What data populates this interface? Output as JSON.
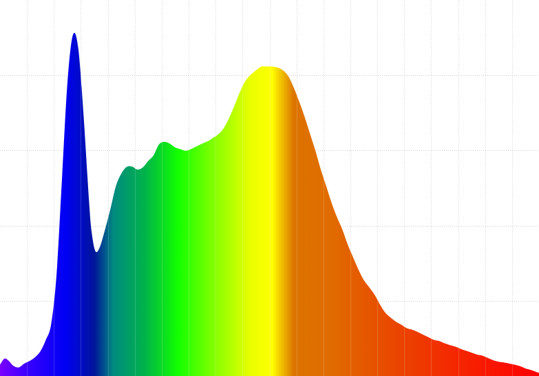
{
  "chart_data": {
    "type": "area",
    "title": "",
    "xlabel": "",
    "ylabel": "",
    "grid": true,
    "xlim": [
      0,
      100
    ],
    "ylim": [
      0,
      100
    ],
    "x_gridlines": [
      5,
      10,
      15,
      20,
      25,
      30,
      35,
      40,
      45,
      50,
      55,
      60,
      65,
      70,
      75,
      80,
      85,
      90,
      95
    ],
    "y_gridlines": [
      20,
      40,
      60,
      80
    ],
    "series": [
      {
        "x": [
          0,
          0.8,
          1.5,
          2.5,
          3.5,
          4.5,
          5.5,
          6.5,
          7.5,
          8.5,
          9.5,
          10.5,
          11.5,
          12.5,
          13.5,
          14.5,
          15.5,
          16.5,
          17.0,
          17.7,
          18.5,
          19.5,
          20.5,
          21.5,
          22.5,
          23.5,
          24.5,
          25.5,
          26.5,
          27.5,
          28.5,
          29.5,
          30.5,
          31.5,
          32.5,
          33.5,
          34.5,
          35.5,
          36.5,
          37.5,
          38.5,
          39.5,
          40.5,
          41.5,
          42.5,
          43.5,
          44.5,
          45.5,
          46.5,
          47.5,
          48.5,
          49.5,
          50.5,
          51.5,
          52.5,
          53.5,
          54.5,
          55.5,
          56.5,
          57.5,
          58.5,
          59.5,
          60.5,
          61.5,
          62.5,
          63.5,
          64.5,
          65.5,
          66.5,
          67.5,
          68.5,
          69.5,
          70.5,
          71.5,
          72.5,
          73.5,
          74.5,
          75.5,
          76.5,
          77.5,
          78.5,
          79.5,
          80.5,
          81.5,
          82.5,
          83.5,
          84.5,
          85.5,
          86.5,
          87.5,
          88.5,
          89.5,
          90.5,
          91.5,
          92.5,
          93.5,
          94.5,
          95.5,
          96.5,
          97.5,
          98.5,
          100
        ],
        "y": [
          3,
          4.6,
          4.2,
          2.7,
          2.3,
          3.3,
          4.0,
          5.0,
          6.6,
          9.6,
          13.9,
          27.2,
          52.5,
          77.8,
          90.6,
          87.4,
          69.4,
          46.9,
          38.3,
          33.2,
          34.2,
          39.0,
          44.5,
          50.5,
          53.8,
          55.6,
          55.7,
          54.9,
          55.5,
          57.2,
          58.7,
          61.6,
          62.3,
          61.8,
          60.8,
          60.3,
          59.9,
          60.4,
          61.1,
          61.8,
          62.4,
          63.3,
          64.3,
          65.9,
          68.6,
          71.9,
          75.5,
          78.4,
          80.1,
          81.3,
          82.3,
          82.3,
          82.3,
          82.0,
          81.3,
          79.7,
          76.7,
          73.0,
          69.0,
          64.5,
          60.0,
          55.0,
          50.6,
          46.1,
          42.3,
          39.0,
          35.0,
          31.6,
          28.3,
          25.5,
          23.6,
          21.6,
          19.0,
          16.8,
          15.5,
          14.4,
          13.6,
          12.7,
          12.3,
          11.7,
          11.0,
          10.3,
          9.6,
          9.3,
          8.7,
          8.2,
          7.8,
          7.2,
          6.7,
          6.2,
          5.7,
          5.4,
          4.8,
          4.2,
          3.8,
          3.6,
          3.3,
          3.0,
          2.6,
          2.0,
          1.6,
          0.8
        ]
      }
    ],
    "gradient": [
      {
        "at": 0,
        "color": "#7a00ff"
      },
      {
        "at": 5,
        "color": "#3a00ff"
      },
      {
        "at": 12,
        "color": "#0000f5"
      },
      {
        "at": 17.5,
        "color": "#00159a"
      },
      {
        "at": 21,
        "color": "#008a80"
      },
      {
        "at": 27,
        "color": "#00b449"
      },
      {
        "at": 33,
        "color": "#12ff00"
      },
      {
        "at": 40,
        "color": "#88ff00"
      },
      {
        "at": 46.5,
        "color": "#eaff00"
      },
      {
        "at": 50.5,
        "color": "#ffff00"
      },
      {
        "at": 52,
        "color": "#f2c800"
      },
      {
        "at": 54.5,
        "color": "#dc7400"
      },
      {
        "at": 62,
        "color": "#e16a00"
      },
      {
        "at": 72,
        "color": "#e84a00"
      },
      {
        "at": 84,
        "color": "#f42800"
      },
      {
        "at": 100,
        "color": "#ff0000"
      }
    ],
    "colors": {
      "background": "#ffffff",
      "grid": "#c8c8c8"
    }
  }
}
